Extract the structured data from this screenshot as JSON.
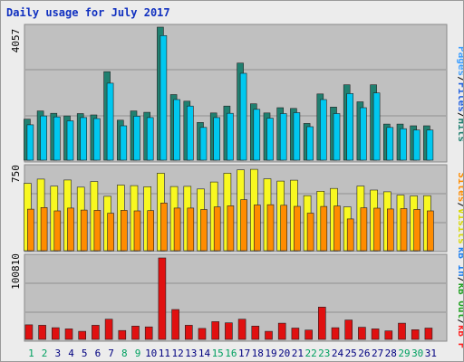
{
  "title": "Daily usage for July 2017",
  "days": [
    "1",
    "2",
    "3",
    "4",
    "5",
    "6",
    "7",
    "8",
    "9",
    "10",
    "11",
    "12",
    "13",
    "14",
    "15",
    "16",
    "17",
    "18",
    "19",
    "20",
    "21",
    "22",
    "23",
    "24",
    "25",
    "26",
    "27",
    "28",
    "29",
    "30",
    "31"
  ],
  "weekend_days": [
    "1",
    "2",
    "8",
    "9",
    "15",
    "16",
    "22",
    "23",
    "29",
    "30"
  ],
  "colors": {
    "hits": "#208070",
    "files": "#00c8f0",
    "pages": "#40a0ff",
    "visits": "#f8f820",
    "sites": "#ff8c00",
    "kb_in": "#2080f0",
    "kb_out": "#20a020",
    "kb_f": "#ff2020",
    "kb_bar": "#e01010",
    "title": "#1030c0",
    "day_label": "#000080",
    "weekend_label": "#00a060"
  },
  "chart_data": [
    {
      "type": "bar",
      "panel": "hits-files",
      "y_tick_label": "4057",
      "ylim": [
        0,
        4057
      ],
      "series": [
        {
          "name": "Hits",
          "values": [
            1250,
            1500,
            1430,
            1350,
            1420,
            1380,
            2700,
            1220,
            1500,
            1460,
            4057,
            2000,
            1800,
            1150,
            1440,
            1650,
            2960,
            1720,
            1440,
            1600,
            1580,
            1120,
            2020,
            1620,
            2300,
            1780,
            2300,
            1100,
            1100,
            1050,
            1050
          ]
        },
        {
          "name": "Files",
          "values": [
            1080,
            1350,
            1320,
            1200,
            1300,
            1270,
            2350,
            1050,
            1340,
            1300,
            3800,
            1850,
            1650,
            1000,
            1300,
            1430,
            2650,
            1550,
            1280,
            1420,
            1450,
            1020,
            1850,
            1420,
            2030,
            1600,
            2050,
            1000,
            960,
            920,
            920
          ]
        }
      ],
      "legend": [
        "Pages",
        "Files",
        "Hits"
      ]
    },
    {
      "type": "bar",
      "panel": "visits-sites",
      "y_tick_label": "750",
      "ylim": [
        0,
        750
      ],
      "series": [
        {
          "name": "Visits",
          "values": [
            600,
            638,
            575,
            630,
            566,
            616,
            485,
            585,
            580,
            570,
            690,
            572,
            573,
            550,
            612,
            690,
            720,
            725,
            640,
            620,
            628,
            490,
            530,
            555,
            390,
            576,
            540,
            525,
            495,
            488,
            490
          ]
        },
        {
          "name": "Sites",
          "values": [
            370,
            385,
            355,
            380,
            362,
            360,
            334,
            360,
            355,
            357,
            425,
            380,
            380,
            367,
            390,
            400,
            455,
            407,
            410,
            405,
            395,
            335,
            394,
            398,
            283,
            382,
            379,
            372,
            375,
            368,
            355
          ]
        }
      ],
      "legend": [
        "Visits",
        "Sites"
      ]
    },
    {
      "type": "bar",
      "panel": "kbytes",
      "y_tick_label": "100810",
      "ylim": [
        0,
        100810
      ],
      "series": [
        {
          "name": "KB F",
          "values": [
            18000,
            17500,
            14500,
            13000,
            10000,
            17500,
            25000,
            11000,
            16500,
            15500,
            100810,
            37000,
            17500,
            13500,
            22000,
            20500,
            25000,
            16500,
            10000,
            20000,
            14000,
            11500,
            40000,
            14500,
            24000,
            15000,
            13000,
            10500,
            20000,
            12000,
            14000
          ]
        }
      ],
      "legend": [
        "KB F",
        "KB In",
        "KB Out"
      ]
    }
  ],
  "right_legend": {
    "panel1": {
      "pages": "Pages",
      "sep1": "/",
      "files": "Files",
      "sep2": "/",
      "hits": "Hits"
    },
    "panel2": {
      "sites": "Sites",
      "sep1": "/",
      "visits": "Visits"
    },
    "panel3": {
      "kb_f": "kB F",
      "sep1": "/",
      "kb_out": "kB Out",
      "sep2": "/",
      "kb_in": "kB In"
    }
  }
}
